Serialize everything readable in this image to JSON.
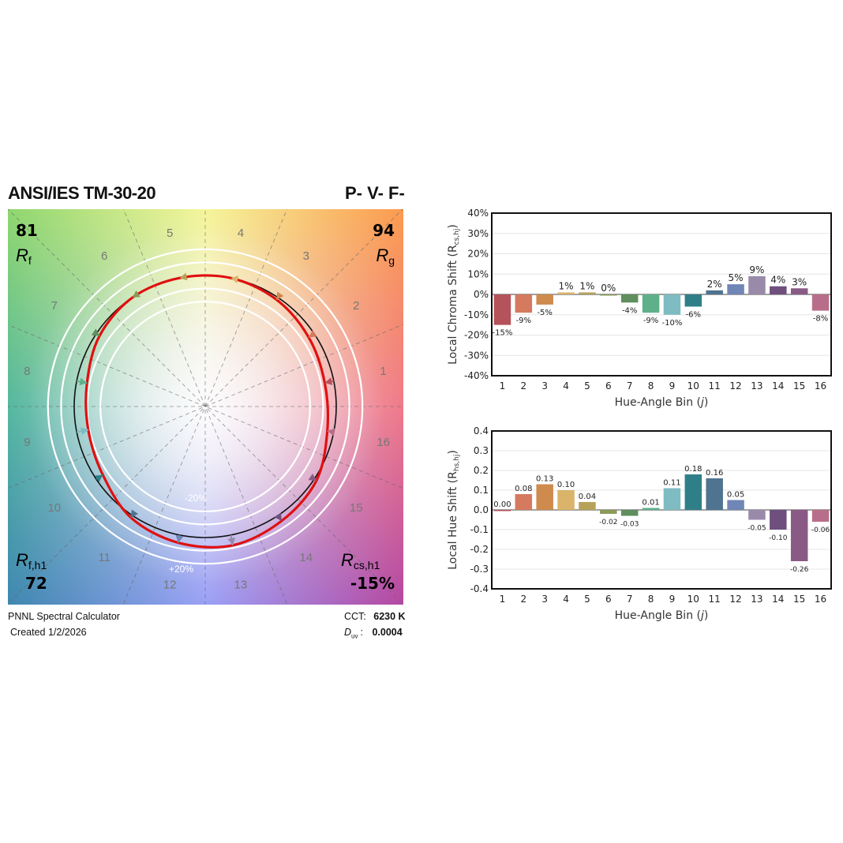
{
  "header": {
    "title": "ANSI/IES TM-30-20",
    "pvf": "P- V- F-"
  },
  "gamut": {
    "rf_value": "81",
    "rf_label": "R",
    "rf_sub": "f",
    "rg_value": "94",
    "rg_label": "R",
    "rg_sub": "g",
    "rfh1_label": "R",
    "rfh1_sub": "f,h1",
    "rfh1_value": "72",
    "rcsh1_label": "R",
    "rcsh1_sub": "cs,h1",
    "rcsh1_value": "-15%",
    "ring_minus": "-20%",
    "ring_plus": "+20%",
    "bin_labels": [
      "1",
      "2",
      "3",
      "4",
      "5",
      "6",
      "7",
      "8",
      "9",
      "10",
      "11",
      "12",
      "13",
      "14",
      "15",
      "16"
    ],
    "test_radius_ratio": [
      0.93,
      0.95,
      0.98,
      1.0,
      1.0,
      1.0,
      0.97,
      0.92,
      0.91,
      0.94,
      1.02,
      1.06,
      1.08,
      1.05,
      1.02,
      0.95
    ]
  },
  "footer": {
    "calculator": "PNNL Spectral Calculator",
    "created": "Created 1/2/2026",
    "cct_label": "CCT:",
    "cct_value": "6230 K",
    "duv_label_main": "D",
    "duv_label_sub": "uv",
    "duv_colon": ":",
    "duv_value": "0.0004"
  },
  "chart_data": [
    {
      "type": "bar",
      "title": "",
      "ylabel": "Local Chroma Shift (R",
      "ylabel_sub": "cs,hj",
      "ylabel_end": ")",
      "xlabel": "Hue-Angle Bin (",
      "xlabel_var": "j",
      "xlabel_end": ")",
      "categories": [
        "1",
        "2",
        "3",
        "4",
        "5",
        "6",
        "7",
        "8",
        "9",
        "10",
        "11",
        "12",
        "13",
        "14",
        "15",
        "16"
      ],
      "values": [
        -15,
        -9,
        -5,
        1,
        1,
        0,
        -4,
        -9,
        -10,
        -6,
        2,
        5,
        9,
        4,
        3,
        -8
      ],
      "value_labels": [
        "-15%",
        "-9%",
        "-5%",
        "1%",
        "1%",
        "0%",
        "-4%",
        "-9%",
        "-10%",
        "-6%",
        "2%",
        "5%",
        "9%",
        "4%",
        "3%",
        "-8%"
      ],
      "yticks": [
        "-40%",
        "-30%",
        "-20%",
        "-10%",
        "0%",
        "10%",
        "20%",
        "30%",
        "40%"
      ],
      "ylim": [
        -40,
        40
      ],
      "colors": [
        "#b5525a",
        "#d57a5e",
        "#cf8a4e",
        "#d9b46a",
        "#b8a25a",
        "#8a9a5a",
        "#5f8f5e",
        "#5fb08a",
        "#7fbcc2",
        "#2f7f88",
        "#4f7390",
        "#6f86b6",
        "#9a8aaa",
        "#6e4f7e",
        "#8a5a86",
        "#b86e8a"
      ]
    },
    {
      "type": "bar",
      "title": "",
      "ylabel": "Local Hue Shift (R",
      "ylabel_sub": "hs,hj",
      "ylabel_end": ")",
      "xlabel": "Hue-Angle Bin (",
      "xlabel_var": "j",
      "xlabel_end": ")",
      "categories": [
        "1",
        "2",
        "3",
        "4",
        "5",
        "6",
        "7",
        "8",
        "9",
        "10",
        "11",
        "12",
        "13",
        "14",
        "15",
        "16"
      ],
      "values": [
        0.0,
        0.08,
        0.13,
        0.1,
        0.04,
        -0.02,
        -0.03,
        0.01,
        0.11,
        0.18,
        0.16,
        0.05,
        -0.05,
        -0.1,
        -0.26,
        -0.06
      ],
      "value_labels": [
        "0.00",
        "0.08",
        "0.13",
        "0.10",
        "0.04",
        "-0.02",
        "-0.03",
        "0.01",
        "0.11",
        "0.18",
        "0.16",
        "0.05",
        "-0.05",
        "-0.10",
        "-0.26",
        "-0.06"
      ],
      "yticks": [
        "-0.4",
        "-0.3",
        "-0.2",
        "-0.1",
        "0.0",
        "0.1",
        "0.2",
        "0.3",
        "0.4"
      ],
      "ylim": [
        -0.4,
        0.4
      ],
      "colors": [
        "#b5525a",
        "#d57a5e",
        "#cf8a4e",
        "#d9b46a",
        "#b8a25a",
        "#8a9a5a",
        "#5f8f5e",
        "#5fb08a",
        "#7fbcc2",
        "#2f7f88",
        "#4f7390",
        "#6f86b6",
        "#9a8aaa",
        "#6e4f7e",
        "#8a5a86",
        "#b86e8a"
      ]
    }
  ]
}
